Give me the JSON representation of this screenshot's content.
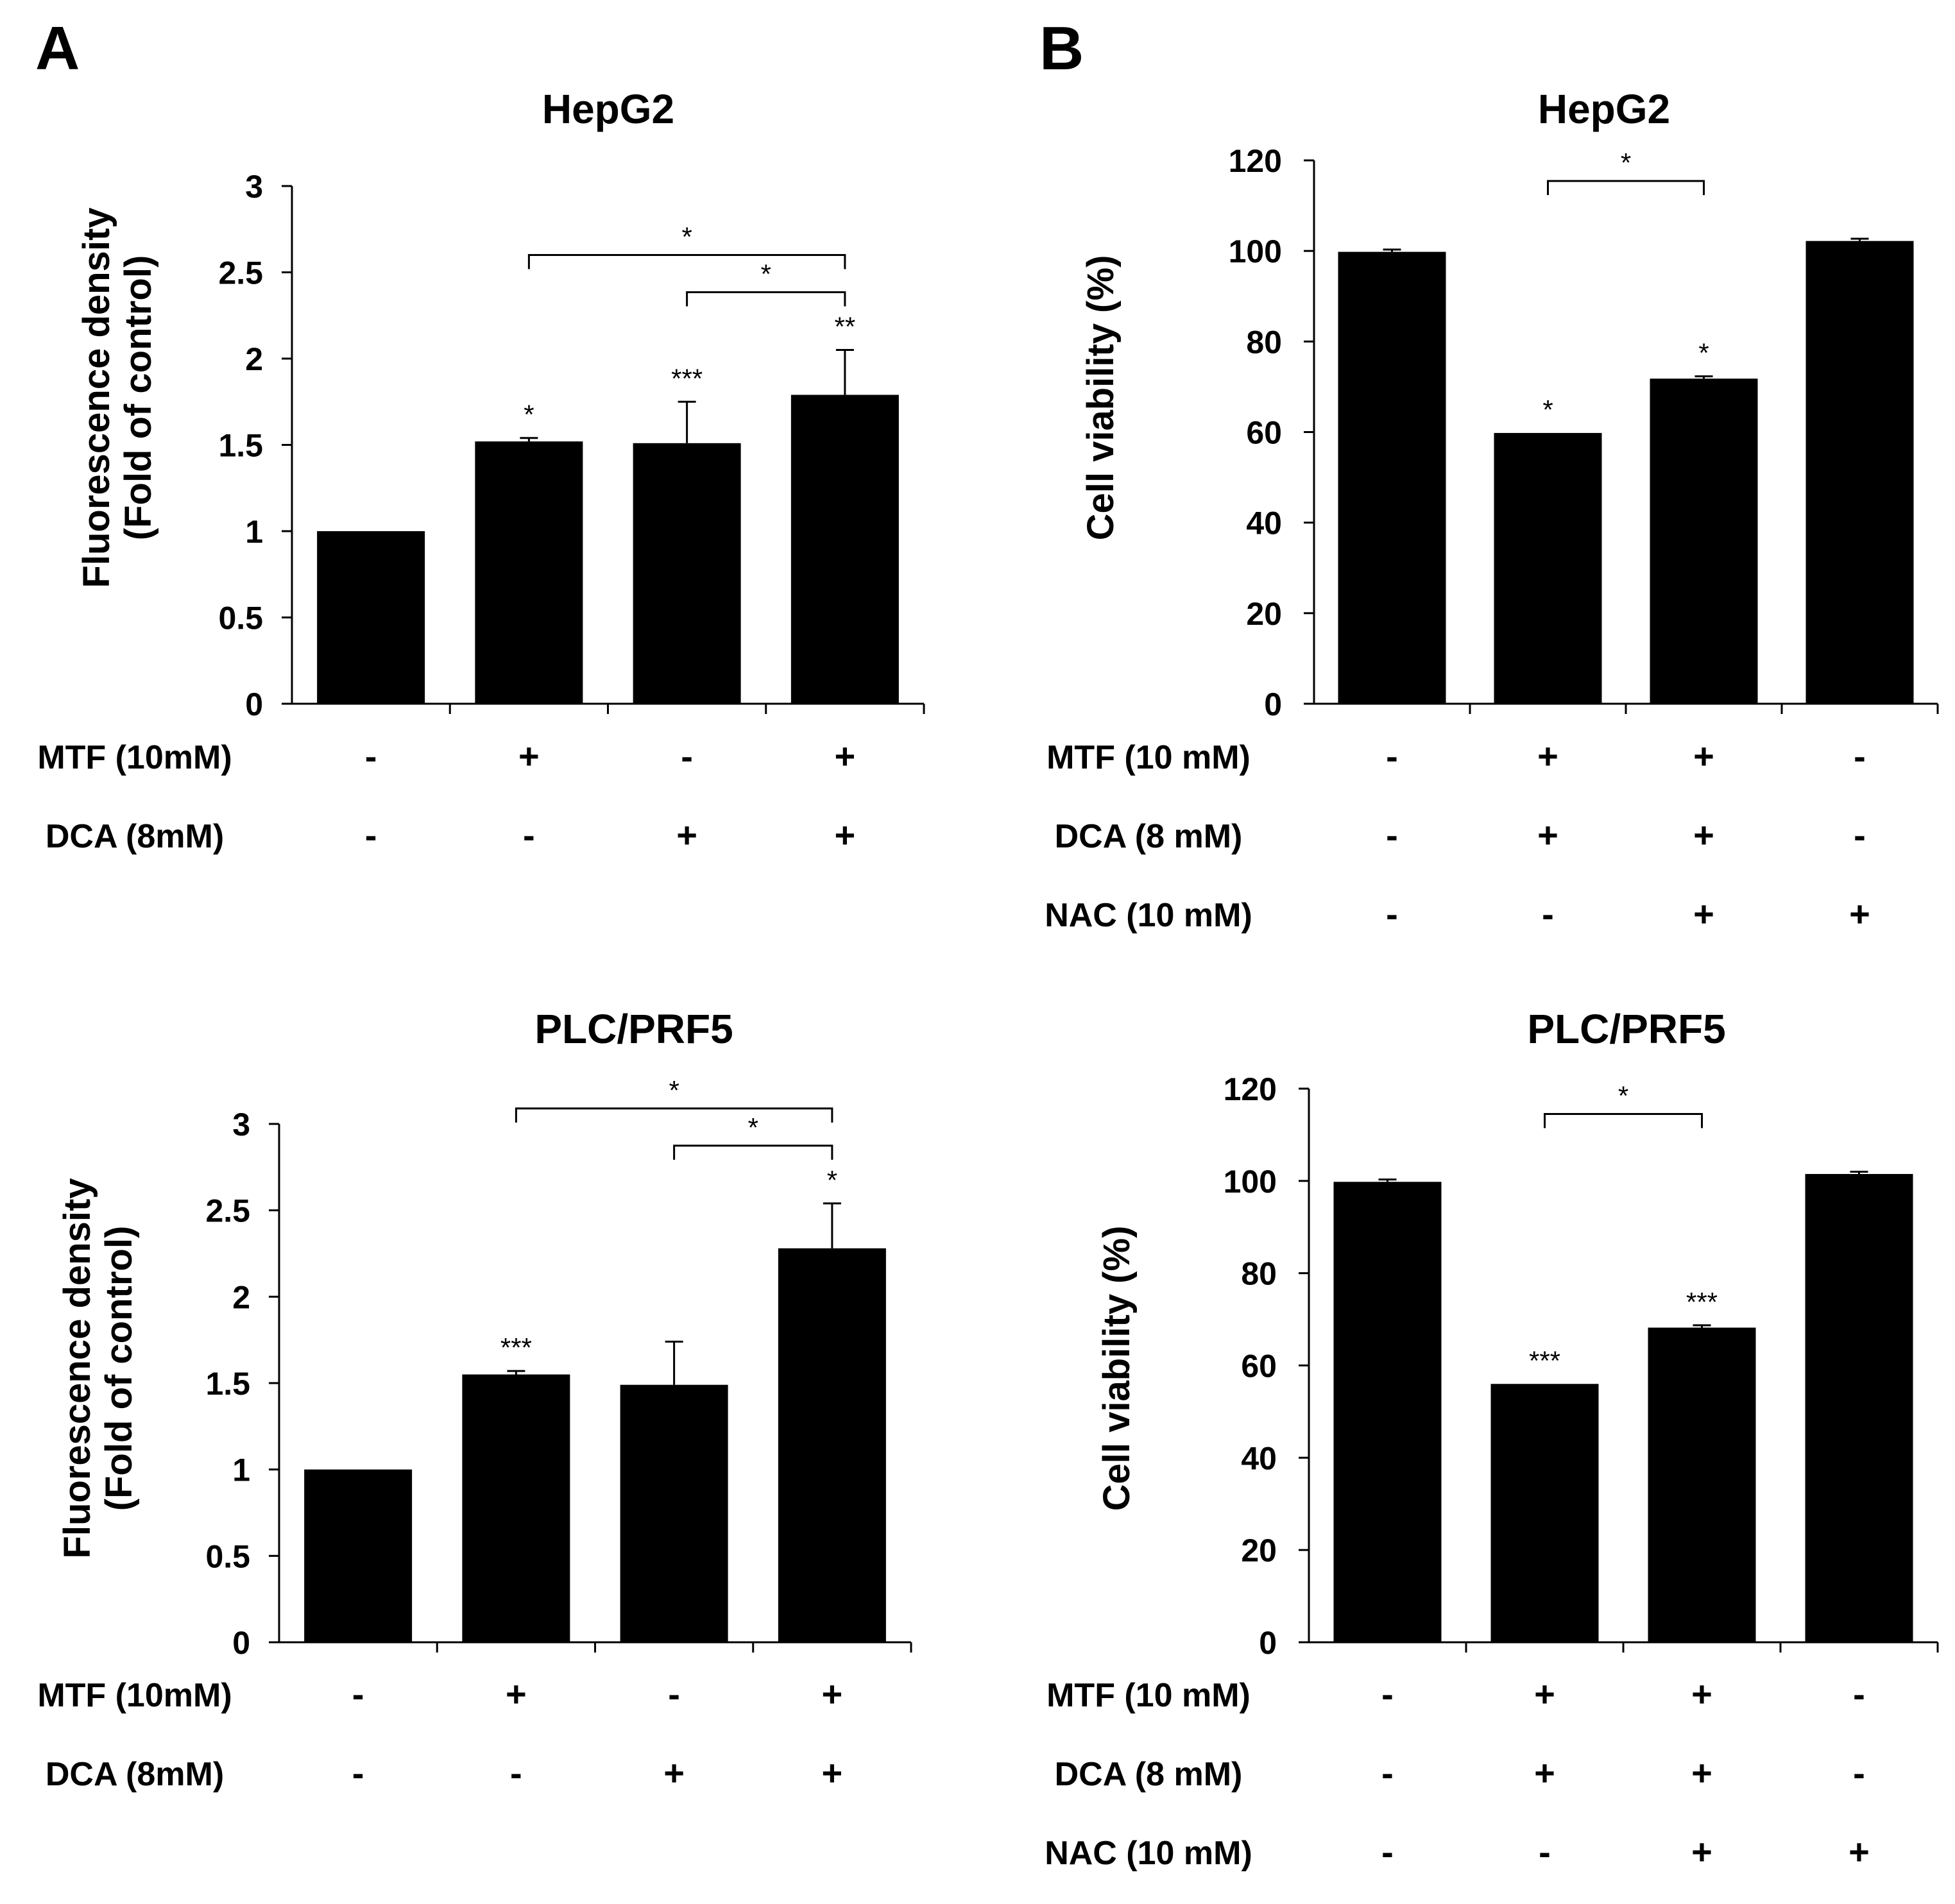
{
  "panels": {
    "A": "A",
    "B": "B"
  },
  "colors": {
    "bar": "#000000",
    "axis": "#000000",
    "background": "#ffffff"
  },
  "chart_data": [
    {
      "id": "A-HepG2",
      "panel": "A",
      "type": "bar",
      "title": "HepG2",
      "ylabel_line1": "Fluorescence density",
      "ylabel_line2": "(Fold of control)",
      "ylim": [
        0,
        3
      ],
      "yticks": [
        "0",
        "0.5",
        "1",
        "1.5",
        "2",
        "2.5",
        "3"
      ],
      "values": [
        1.0,
        1.52,
        1.51,
        1.79
      ],
      "errors": [
        0,
        0.02,
        0.24,
        0.26
      ],
      "marks": [
        "",
        "*",
        "***",
        "**"
      ],
      "brackets": [
        {
          "from": 1,
          "to": 3,
          "label": "*",
          "level": 0
        },
        {
          "from": 2,
          "to": 3,
          "label": "*",
          "level": 1
        }
      ],
      "conditions": [
        {
          "label": "MTF (10mM)",
          "signs": [
            "-",
            "+",
            "-",
            "+"
          ]
        },
        {
          "label": "DCA (8mM)",
          "signs": [
            "-",
            "-",
            "+",
            "+"
          ]
        }
      ]
    },
    {
      "id": "B-HepG2",
      "panel": "B",
      "type": "bar",
      "title": "HepG2",
      "ylabel_line1": "Cell viability (%)",
      "ylabel_line2": "",
      "ylim": [
        0,
        120
      ],
      "yticks": [
        "0",
        "20",
        "40",
        "60",
        "80",
        "100",
        "120"
      ],
      "values": [
        99.8,
        59.8,
        71.8,
        102.2
      ],
      "errors": [
        0.5,
        0,
        0.5,
        0.5
      ],
      "marks": [
        "",
        "*",
        "*",
        ""
      ],
      "brackets": [
        {
          "from": 1,
          "to": 2,
          "label": "*",
          "level": 0
        }
      ],
      "conditions": [
        {
          "label": "MTF (10 mM)",
          "signs": [
            "-",
            "+",
            "+",
            "-"
          ]
        },
        {
          "label": "DCA (8 mM)",
          "signs": [
            "-",
            "+",
            "+",
            "-"
          ]
        },
        {
          "label": "NAC (10 mM)",
          "signs": [
            "-",
            "-",
            "+",
            "+"
          ]
        }
      ]
    },
    {
      "id": "A-PLC",
      "panel": "A",
      "type": "bar",
      "title": "PLC/PRF5",
      "ylabel_line1": "Fluorescence density",
      "ylabel_line2": "(Fold of control)",
      "ylim": [
        0,
        3
      ],
      "yticks": [
        "0",
        "0.5",
        "1",
        "1.5",
        "2",
        "2.5",
        "3"
      ],
      "values": [
        1.0,
        1.55,
        1.49,
        2.28
      ],
      "errors": [
        0,
        0.02,
        0.25,
        0.26
      ],
      "marks": [
        "",
        "***",
        "",
        "*"
      ],
      "brackets": [
        {
          "from": 1,
          "to": 3,
          "label": "*",
          "level": 0
        },
        {
          "from": 2,
          "to": 3,
          "label": "*",
          "level": 1
        }
      ],
      "conditions": [
        {
          "label": "MTF (10mM)",
          "signs": [
            "-",
            "+",
            "-",
            "+"
          ]
        },
        {
          "label": "DCA (8mM)",
          "signs": [
            "-",
            "-",
            "+",
            "+"
          ]
        }
      ]
    },
    {
      "id": "B-PLC",
      "panel": "B",
      "type": "bar",
      "title": "PLC/PRF5",
      "ylabel_line1": "Cell viability (%)",
      "ylabel_line2": "",
      "ylim": [
        0,
        120
      ],
      "yticks": [
        "0",
        "20",
        "40",
        "60",
        "80",
        "100",
        "120"
      ],
      "values": [
        99.8,
        56.0,
        68.2,
        101.5
      ],
      "errors": [
        0.5,
        0,
        0.5,
        0.5
      ],
      "marks": [
        "",
        "***",
        "***",
        ""
      ],
      "brackets": [
        {
          "from": 1,
          "to": 2,
          "label": "*",
          "level": 0
        }
      ],
      "conditions": [
        {
          "label": "MTF (10 mM)",
          "signs": [
            "-",
            "+",
            "+",
            "-"
          ]
        },
        {
          "label": "DCA (8 mM)",
          "signs": [
            "-",
            "+",
            "+",
            "-"
          ]
        },
        {
          "label": "NAC (10 mM)",
          "signs": [
            "-",
            "-",
            "+",
            "+"
          ]
        }
      ]
    }
  ]
}
